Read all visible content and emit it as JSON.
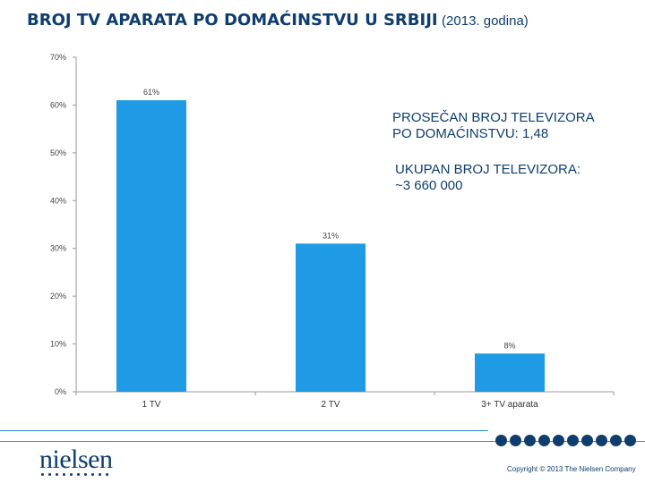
{
  "title": {
    "main": "BROJ TV APARATA PO DOMAĆINSTVU U SRBIJI",
    "sub": "(2013. godina)"
  },
  "annotations": {
    "average_line1": "PROSEČAN BROJ TELEVIZORA",
    "average_line2": "PO DOMAĆINSTVU: 1,48",
    "total_line1": "UKUPAN BROJ TELEVIZORA:",
    "total_line2": "~3 660 000"
  },
  "chart_data": {
    "type": "bar",
    "categories": [
      "1 TV",
      "2 TV",
      "3+ TV aparata"
    ],
    "values": [
      61,
      31,
      8
    ],
    "data_labels": [
      "61%",
      "31%",
      "8%"
    ],
    "ylim": [
      0,
      70
    ],
    "yticks": [
      0,
      10,
      20,
      30,
      40,
      50,
      60,
      70
    ],
    "ytick_labels": [
      "0%",
      "10%",
      "20%",
      "30%",
      "40%",
      "50%",
      "60%",
      "70%"
    ],
    "bar_color": "#1e9be4",
    "grid": false,
    "legend": "none"
  },
  "footer": {
    "logo": "nielsen",
    "copyright": "Copyright © 2013 The Nielsen Company"
  },
  "colors": {
    "title": "#0f3d6e",
    "accent": "#2a8fd8"
  }
}
